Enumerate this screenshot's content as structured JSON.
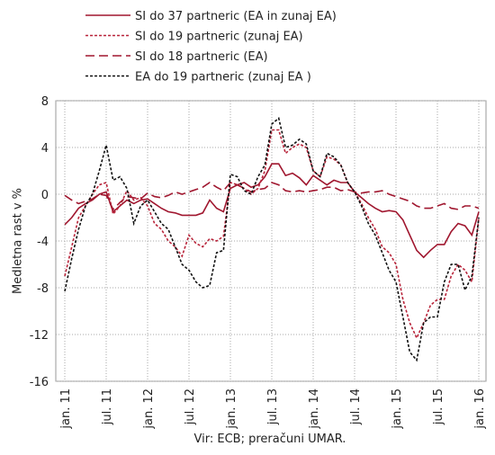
{
  "chart_data": {
    "type": "line",
    "y_label": "Medletna rast v %",
    "source": "Vir: ECB; preračuni UMAR.",
    "categories": [
      "jan. 11",
      null,
      null,
      null,
      null,
      null,
      "jul. 11",
      null,
      null,
      null,
      null,
      null,
      "jan. 12",
      null,
      null,
      null,
      null,
      null,
      "jul. 12",
      null,
      null,
      null,
      null,
      null,
      "jan. 13",
      null,
      null,
      null,
      null,
      null,
      "jul. 13",
      null,
      null,
      null,
      null,
      null,
      "jan. 14",
      null,
      null,
      null,
      null,
      null,
      "jul. 14",
      null,
      null,
      null,
      null,
      null,
      "jan. 15",
      null,
      null,
      null,
      null,
      null,
      "jul. 15",
      null,
      null,
      null,
      null,
      null,
      "jan. 16"
    ],
    "ylim": [
      -16,
      8
    ],
    "yticks": [
      -16,
      -12,
      -8,
      -4,
      0,
      4,
      8
    ],
    "grid": true,
    "series": [
      {
        "name": "SI do 37 partneric (EA in zunaj EA)",
        "color": "#a0172f",
        "dash": "solid",
        "values": [
          -2.6,
          -2.0,
          -1.2,
          -0.8,
          -0.5,
          0.0,
          0.2,
          -1.5,
          -1.0,
          -0.5,
          -0.8,
          -0.5,
          -0.4,
          -0.8,
          -1.2,
          -1.5,
          -1.6,
          -1.8,
          -1.8,
          -1.8,
          -1.6,
          -0.5,
          -1.2,
          -1.5,
          0.5,
          0.8,
          1.0,
          0.6,
          0.8,
          1.5,
          2.6,
          2.6,
          1.6,
          1.8,
          1.4,
          0.8,
          1.6,
          1.2,
          0.8,
          1.2,
          1.0,
          1.0,
          0.2,
          -0.3,
          -0.8,
          -1.2,
          -1.5,
          -1.4,
          -1.5,
          -2.2,
          -3.5,
          -4.8,
          -5.4,
          -4.8,
          -4.3,
          -4.3,
          -3.2,
          -2.5,
          -2.7,
          -3.5,
          -1.5
        ]
      },
      {
        "name": "SI do 19 partneric (zunaj EA)",
        "color": "#b8243a",
        "dash": "dotted",
        "values": [
          -7,
          -4.5,
          -2,
          -1,
          0,
          0.8,
          1.0,
          -1.7,
          -1,
          0.3,
          -0.5,
          -0.3,
          -1.0,
          -2.5,
          -3.0,
          -4.0,
          -4.5,
          -5.3,
          -3.5,
          -4.2,
          -4.5,
          -3.8,
          -4.0,
          -3.6,
          1.0,
          0.8,
          0.5,
          0,
          0.5,
          2,
          5.5,
          5.5,
          3.5,
          4,
          4.3,
          4,
          2,
          1.5,
          3.2,
          3,
          2.5,
          1,
          0.2,
          -0.8,
          -2,
          -3,
          -4.5,
          -5,
          -6,
          -9,
          -11,
          -12.3,
          -11,
          -9.5,
          -9,
          -9,
          -7,
          -6,
          -6.5,
          -7.5,
          -2
        ]
      },
      {
        "name": "SI do 18 partneric (EA)",
        "color": "#a0172f",
        "dash": "dashed",
        "values": [
          -0.1,
          -0.5,
          -0.8,
          -0.6,
          -0.4,
          0.0,
          -0.1,
          -1.3,
          -0.7,
          -0.2,
          -0.3,
          -0.4,
          0.1,
          -0.2,
          -0.3,
          -0.1,
          0.2,
          0.0,
          0.2,
          0.4,
          0.6,
          1.0,
          0.6,
          0.3,
          1.0,
          0.8,
          0.5,
          0.2,
          0.4,
          0.5,
          1.0,
          0.8,
          0.3,
          0.2,
          0.3,
          0.2,
          0.3,
          0.4,
          0.6,
          0.6,
          0.3,
          0.4,
          0.2,
          0.1,
          0.2,
          0.2,
          0.3,
          0,
          -0.2,
          -0.4,
          -0.6,
          -1.0,
          -1.2,
          -1.2,
          -1.0,
          -0.8,
          -1.2,
          -1.3,
          -1.0,
          -1.0,
          -1.2
        ]
      },
      {
        "name": "EA do 19 partneric (zunaj EA )",
        "color": "#111111",
        "dash": "dotted",
        "values": [
          -8.3,
          -5.5,
          -3,
          -1,
          0,
          2,
          4.2,
          1.2,
          1.5,
          0.5,
          -2.5,
          -1,
          -0.5,
          -1.5,
          -2.5,
          -3,
          -4.5,
          -6,
          -6.5,
          -7.5,
          -8,
          -7.8,
          -5,
          -4.8,
          1.7,
          1.5,
          0.3,
          0,
          1.5,
          2.5,
          6,
          6.5,
          4,
          4.2,
          4.7,
          4.3,
          2,
          1.5,
          3.5,
          3.2,
          2.5,
          1,
          0.2,
          -1,
          -2.5,
          -3.5,
          -5,
          -6.5,
          -7.5,
          -10.5,
          -13.5,
          -14.2,
          -11,
          -10.5,
          -10.5,
          -7.5,
          -6,
          -6,
          -8.2,
          -7,
          -2
        ]
      }
    ]
  }
}
